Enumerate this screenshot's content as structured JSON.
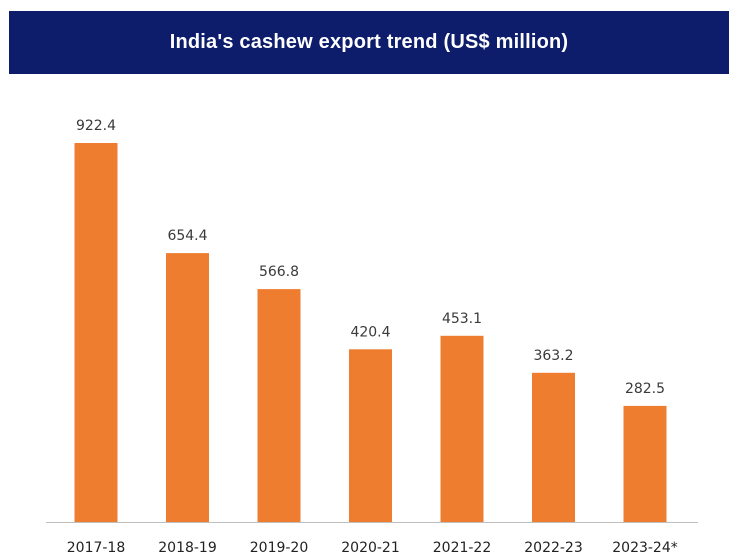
{
  "title": "India's cashew export trend (US$ million)",
  "colors": {
    "header_background": "#0d1c6b",
    "header_text": "#ffffff",
    "bar": "#ee7d30",
    "axis": "#bfbfbf"
  },
  "chart_data": {
    "type": "bar",
    "title": "India's cashew export trend (US$ million)",
    "categories": [
      "2017-18",
      "2018-19",
      "2019-20",
      "2020-21",
      "2021-22",
      "2022-23",
      "2023-24*"
    ],
    "values": [
      922.4,
      654.4,
      566.8,
      420.4,
      453.1,
      363.2,
      282.5
    ],
    "value_labels": [
      "922.4",
      "654.4",
      "566.8",
      "420.4",
      "453.1",
      "363.2",
      "282.5"
    ],
    "xlabel": "",
    "ylabel": "",
    "ylim": [
      0,
      922.4
    ],
    "grid": false,
    "legend": "none"
  }
}
